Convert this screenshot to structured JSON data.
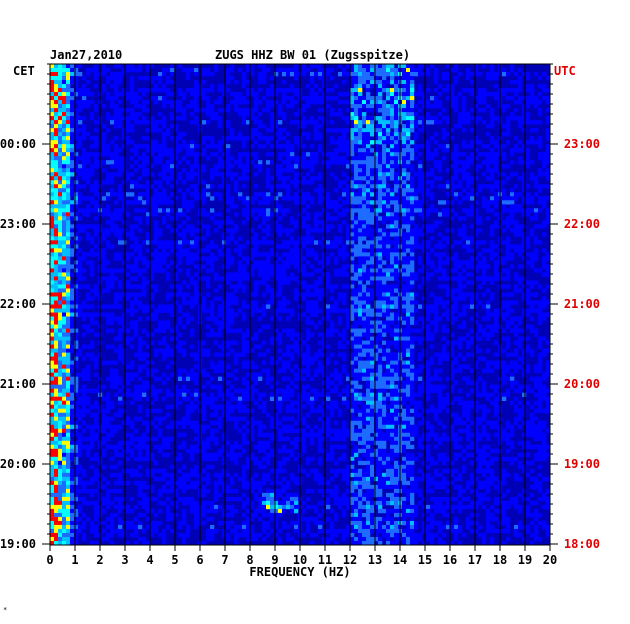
{
  "header": {
    "date": "Jan27,2010",
    "station": "ZUGS HHZ BW 01 (Zugsspitze)"
  },
  "chart_data": {
    "type": "heatmap",
    "title": "ZUGS HHZ BW 01 (Zugsspitze)",
    "date": "Jan27,2010",
    "xlabel": "FREQUENCY (HZ)",
    "xlim": [
      0,
      20
    ],
    "x_ticks": [
      "0",
      "1",
      "2",
      "3",
      "4",
      "5",
      "6",
      "7",
      "8",
      "9",
      "10",
      "11",
      "12",
      "13",
      "14",
      "15",
      "16",
      "17",
      "18",
      "19",
      "20"
    ],
    "left_axis": {
      "label": "CET",
      "ticks": [
        "00:00",
        "23:00",
        "22:00",
        "21:00",
        "20:00",
        "19:00"
      ]
    },
    "right_axis": {
      "label": "UTC",
      "color": "#e00000",
      "ticks": [
        "23:00",
        "22:00",
        "21:00",
        "20:00",
        "19:00",
        "18:00"
      ]
    },
    "grid": true,
    "colormap": [
      "#00008b",
      "#0000ff",
      "#00bfff",
      "#00ffff",
      "#ffff00",
      "#ff0000"
    ],
    "background_color": "#0000b4",
    "features": [
      {
        "description": "strong low-frequency energy",
        "freq_range": [
          0,
          0.8
        ]
      },
      {
        "description": "persistent band",
        "freq_range": [
          12,
          14.5
        ]
      },
      {
        "description": "short transient near 19:30 CET",
        "freq_range": [
          8.5,
          10
        ]
      }
    ]
  },
  "footer_mark": "*"
}
